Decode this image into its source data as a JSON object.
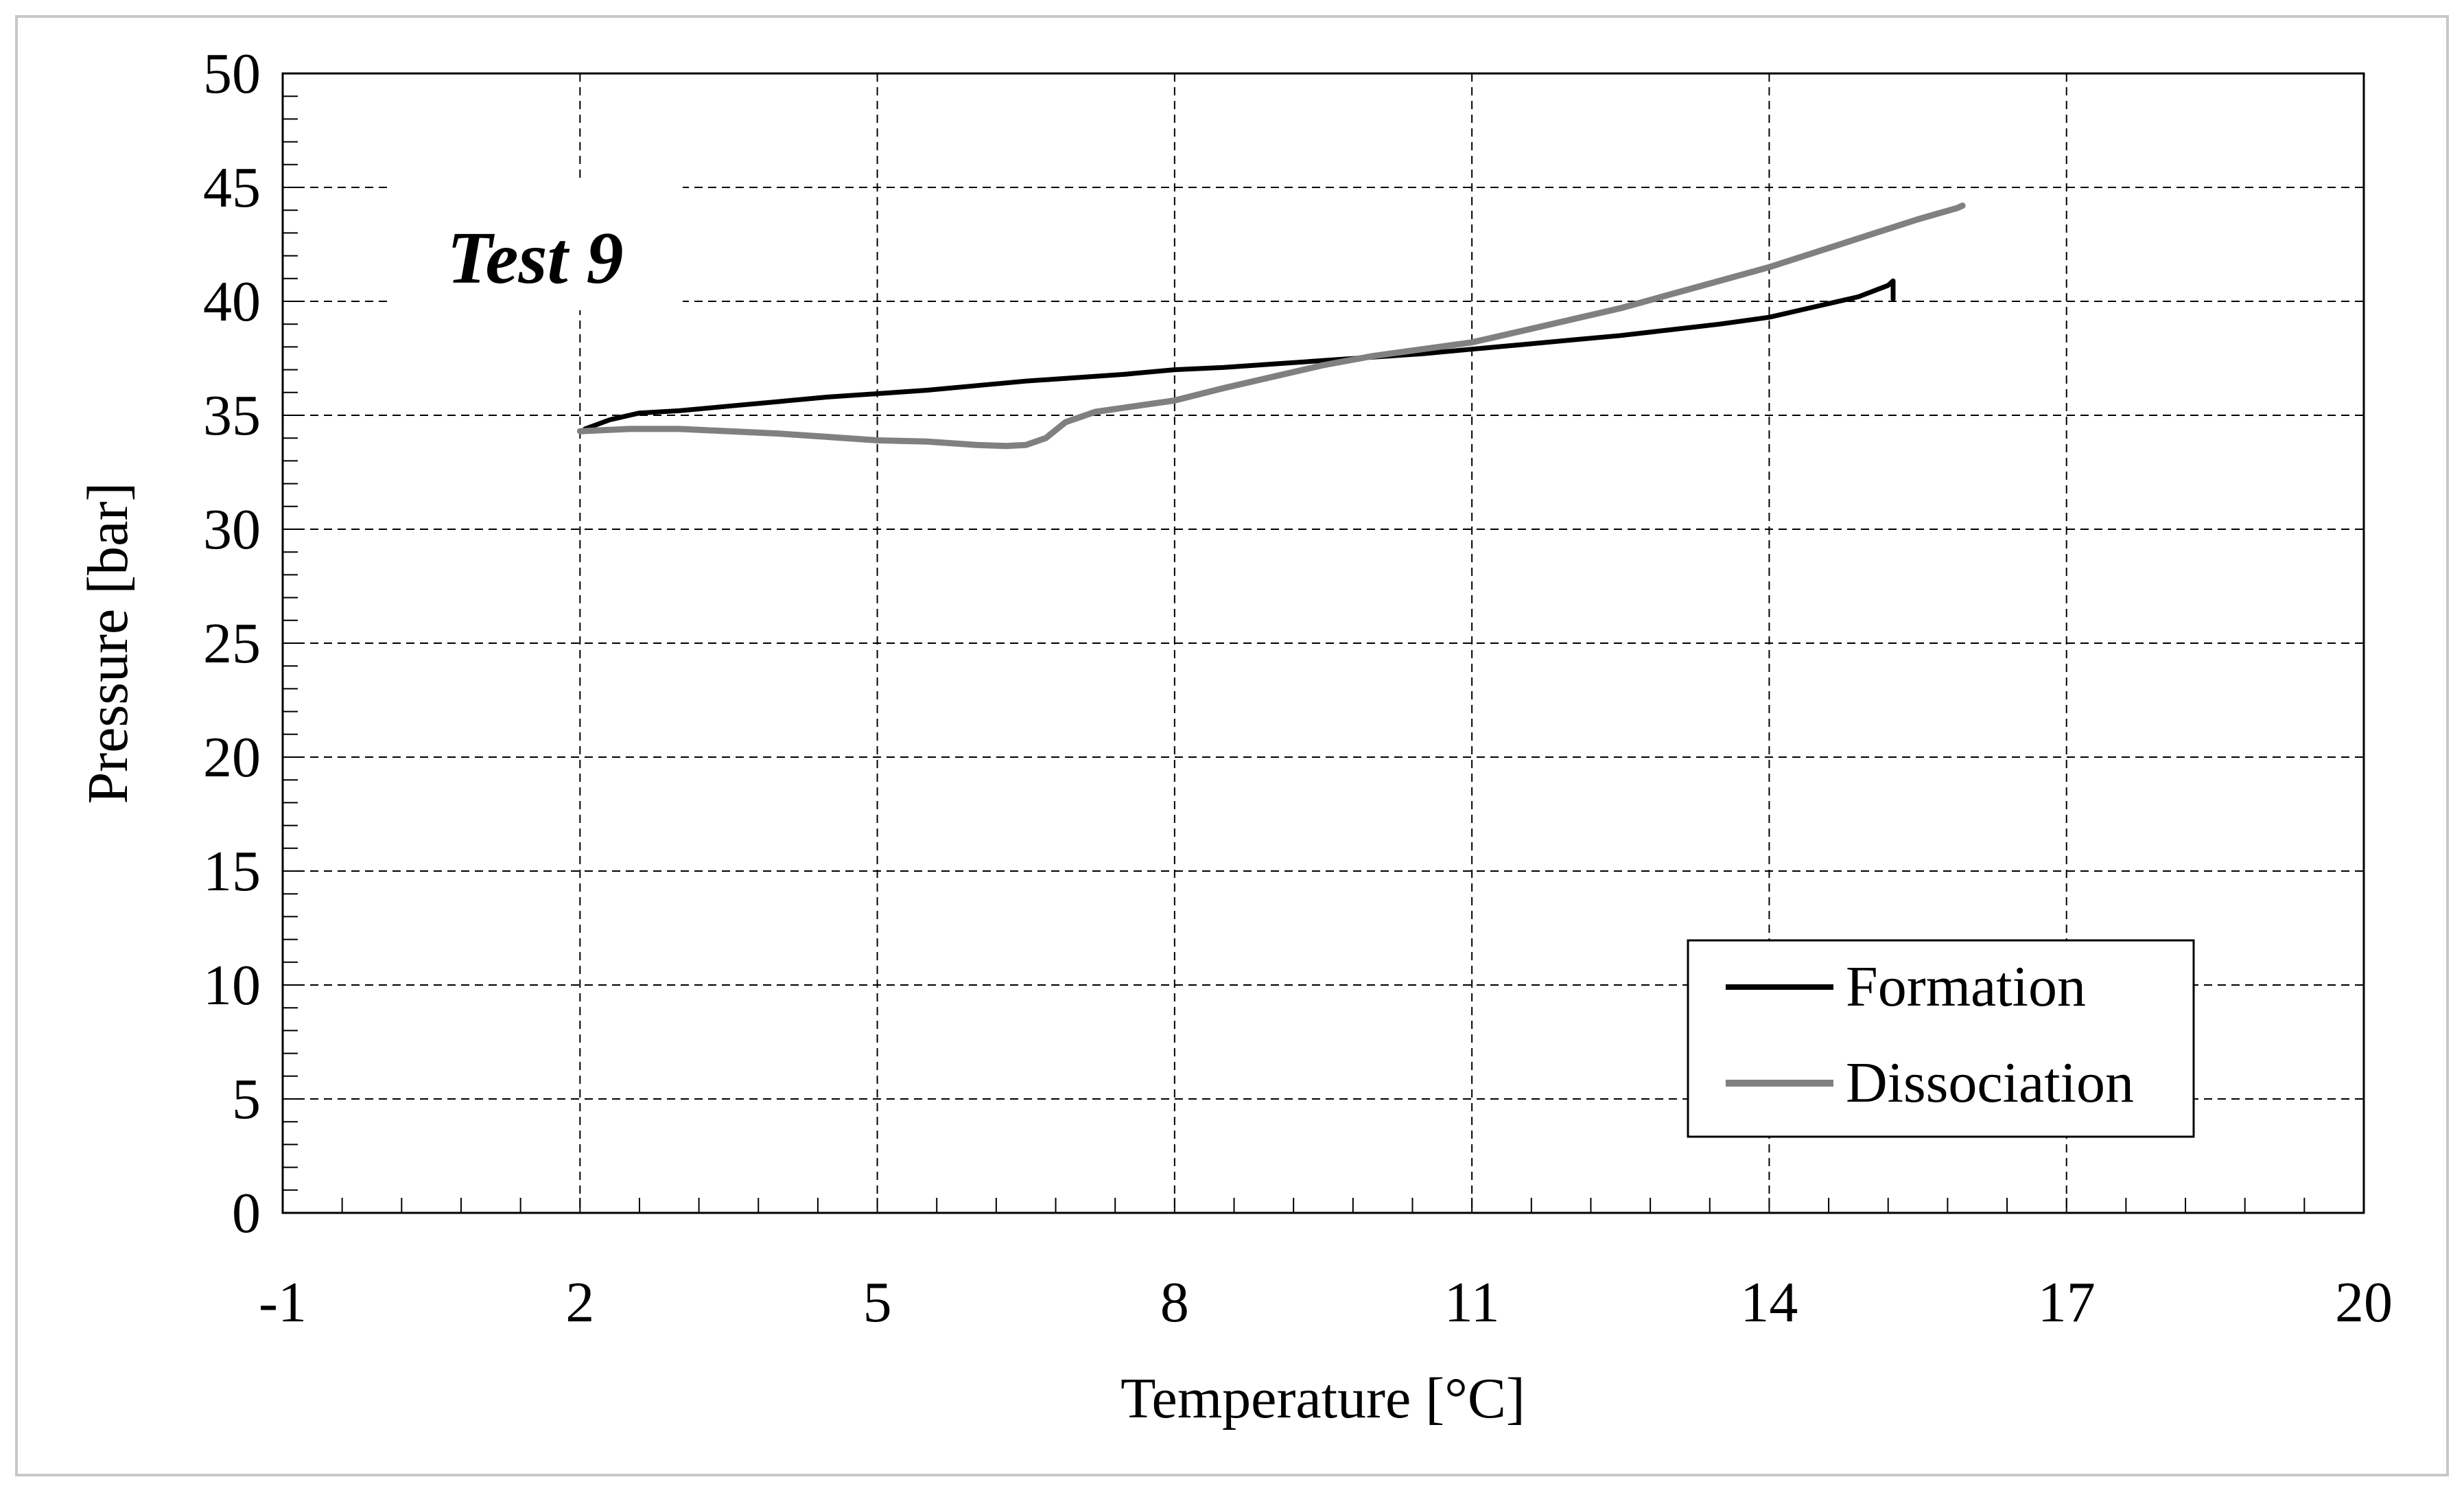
{
  "chart_data": {
    "type": "line",
    "title": "Test 9",
    "xlabel": "Temperature [°C]",
    "ylabel": "Pressure [bar]",
    "xlim": [
      -1,
      20
    ],
    "ylim": [
      0,
      50
    ],
    "x_ticks": [
      -1,
      2,
      5,
      8,
      11,
      14,
      17,
      20
    ],
    "y_ticks": [
      0,
      5,
      10,
      15,
      20,
      25,
      30,
      35,
      40,
      45,
      50
    ],
    "x_minor_step": 0.6,
    "y_minor_step": 1,
    "grid": true,
    "legend_position": "bottom-right",
    "series": [
      {
        "name": "Formation",
        "color": "#000000",
        "points": [
          [
            2.05,
            34.4
          ],
          [
            2.3,
            34.8
          ],
          [
            2.6,
            35.1
          ],
          [
            3.0,
            35.2
          ],
          [
            3.5,
            35.4
          ],
          [
            4.0,
            35.6
          ],
          [
            4.5,
            35.8
          ],
          [
            5.0,
            35.95
          ],
          [
            5.5,
            36.1
          ],
          [
            6.0,
            36.3
          ],
          [
            6.5,
            36.5
          ],
          [
            7.0,
            36.65
          ],
          [
            7.5,
            36.8
          ],
          [
            8.0,
            37.0
          ],
          [
            8.5,
            37.1
          ],
          [
            9.0,
            37.25
          ],
          [
            9.5,
            37.4
          ],
          [
            10.0,
            37.55
          ],
          [
            10.5,
            37.7
          ],
          [
            11.0,
            37.9
          ],
          [
            11.5,
            38.1
          ],
          [
            12.0,
            38.3
          ],
          [
            12.5,
            38.5
          ],
          [
            13.0,
            38.75
          ],
          [
            13.5,
            39.0
          ],
          [
            14.0,
            39.3
          ],
          [
            14.5,
            39.8
          ],
          [
            14.9,
            40.2
          ],
          [
            15.2,
            40.7
          ],
          [
            15.25,
            40.9
          ],
          [
            15.25,
            40.1
          ]
        ]
      },
      {
        "name": "Dissociation",
        "color": "#808080",
        "points": [
          [
            2.0,
            34.3
          ],
          [
            2.5,
            34.4
          ],
          [
            3.0,
            34.4
          ],
          [
            3.5,
            34.3
          ],
          [
            4.0,
            34.2
          ],
          [
            4.5,
            34.05
          ],
          [
            5.0,
            33.9
          ],
          [
            5.5,
            33.85
          ],
          [
            6.0,
            33.7
          ],
          [
            6.3,
            33.65
          ],
          [
            6.5,
            33.7
          ],
          [
            6.7,
            34.0
          ],
          [
            6.9,
            34.7
          ],
          [
            7.2,
            35.15
          ],
          [
            7.6,
            35.4
          ],
          [
            8.0,
            35.65
          ],
          [
            8.5,
            36.2
          ],
          [
            9.0,
            36.7
          ],
          [
            9.5,
            37.2
          ],
          [
            10.0,
            37.6
          ],
          [
            10.5,
            37.9
          ],
          [
            11.0,
            38.2
          ],
          [
            11.5,
            38.7
          ],
          [
            12.0,
            39.2
          ],
          [
            12.5,
            39.7
          ],
          [
            13.0,
            40.3
          ],
          [
            13.5,
            40.9
          ],
          [
            14.0,
            41.5
          ],
          [
            14.5,
            42.2
          ],
          [
            15.0,
            42.9
          ],
          [
            15.5,
            43.6
          ],
          [
            15.9,
            44.1
          ],
          [
            15.95,
            44.2
          ]
        ]
      }
    ]
  }
}
